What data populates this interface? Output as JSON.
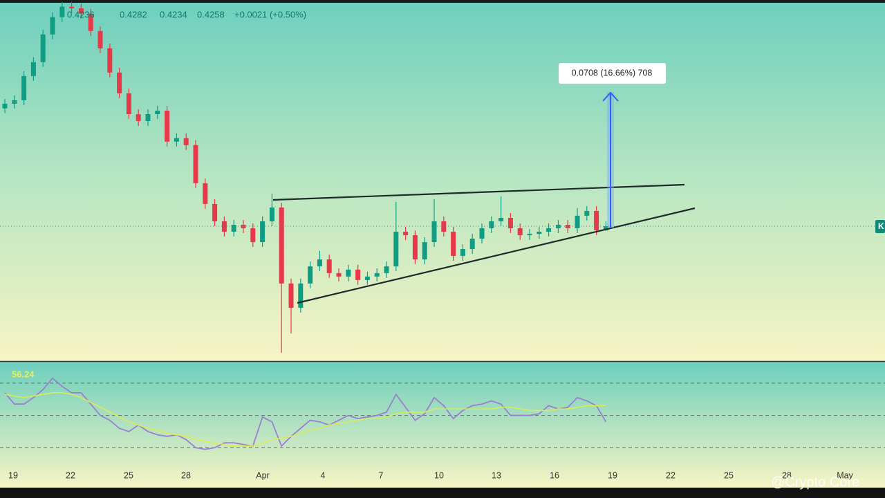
{
  "header": {
    "change": "+0.0021 (+0.50%)"
  },
  "watermark": "@Crypto Core",
  "price_badge": "K",
  "chart_data": [
    {
      "type": "candlestick",
      "up_color": "#0f9d84",
      "down_color": "#e8394a",
      "ylim": [
        0.3557,
        0.5433
      ],
      "measure_label": "0.0708 (16.66%) 708",
      "x_axis_labels": [
        "19",
        "22",
        "25",
        "28",
        "Apr",
        "4",
        "7",
        "10",
        "13",
        "16",
        "19",
        "22",
        "25",
        "28",
        "May"
      ],
      "open": [
        0.487,
        0.4894,
        0.4912,
        0.5038,
        0.511,
        0.5254,
        0.5344,
        0.5398,
        0.539,
        0.5362,
        0.5272,
        0.5182,
        0.5056,
        0.4948,
        0.484,
        0.4804,
        0.484,
        0.4858,
        0.4697,
        0.4715,
        0.4679,
        0.4481,
        0.4373,
        0.4283,
        0.4229,
        0.4265,
        0.4247,
        0.4175,
        0.4283,
        0.4355,
        0.396,
        0.3834,
        0.396,
        0.4049,
        0.4085,
        0.4014,
        0.3996,
        0.4032,
        0.3978,
        0.3996,
        0.4014,
        0.4049,
        0.4229,
        0.4211,
        0.4085,
        0.4175,
        0.4283,
        0.4229,
        0.4103,
        0.4139,
        0.4193,
        0.4247,
        0.4283,
        0.4301,
        0.4247,
        0.4211,
        0.4218,
        0.4229,
        0.4247,
        0.4265,
        0.4247,
        0.4312,
        0.4337,
        0.4236
      ],
      "high": [
        0.4919,
        0.4937,
        0.5063,
        0.5135,
        0.5279,
        0.5369,
        0.5423,
        0.5423,
        0.5415,
        0.5387,
        0.5297,
        0.5207,
        0.5081,
        0.4973,
        0.4865,
        0.4865,
        0.4883,
        0.4883,
        0.474,
        0.474,
        0.4704,
        0.4506,
        0.4398,
        0.4308,
        0.429,
        0.429,
        0.4272,
        0.4308,
        0.4427,
        0.438,
        0.3985,
        0.3985,
        0.4074,
        0.413,
        0.411,
        0.4039,
        0.4057,
        0.4057,
        0.4021,
        0.4039,
        0.4074,
        0.4384,
        0.4254,
        0.4236,
        0.42,
        0.4398,
        0.4308,
        0.4254,
        0.4164,
        0.4218,
        0.4272,
        0.4308,
        0.4413,
        0.4326,
        0.4272,
        0.4243,
        0.4254,
        0.4272,
        0.429,
        0.429,
        0.4352,
        0.4362,
        0.4362,
        0.4282
      ],
      "low": [
        0.4845,
        0.4869,
        0.4887,
        0.5013,
        0.5085,
        0.5229,
        0.5319,
        0.5365,
        0.5337,
        0.5247,
        0.5157,
        0.5031,
        0.4923,
        0.4815,
        0.4779,
        0.4779,
        0.4815,
        0.4672,
        0.4672,
        0.4654,
        0.4456,
        0.4348,
        0.4258,
        0.4204,
        0.4204,
        0.4222,
        0.415,
        0.415,
        0.4258,
        0.36,
        0.37,
        0.3809,
        0.3935,
        0.4024,
        0.3989,
        0.3971,
        0.3971,
        0.3953,
        0.3953,
        0.3971,
        0.3989,
        0.4024,
        0.4186,
        0.406,
        0.406,
        0.415,
        0.4204,
        0.4078,
        0.4078,
        0.4114,
        0.4168,
        0.4222,
        0.4258,
        0.4222,
        0.4186,
        0.4186,
        0.4193,
        0.4204,
        0.4222,
        0.4222,
        0.4222,
        0.4287,
        0.4212,
        0.4234
      ],
      "close": [
        0.4894,
        0.4912,
        0.5038,
        0.511,
        0.5254,
        0.5344,
        0.5398,
        0.539,
        0.5362,
        0.5272,
        0.5182,
        0.5056,
        0.4948,
        0.484,
        0.4804,
        0.484,
        0.4858,
        0.4697,
        0.4715,
        0.4679,
        0.4481,
        0.4373,
        0.4283,
        0.4229,
        0.4265,
        0.4247,
        0.4175,
        0.4283,
        0.4355,
        0.396,
        0.3834,
        0.396,
        0.4049,
        0.4085,
        0.4014,
        0.3996,
        0.4032,
        0.3978,
        0.3996,
        0.4014,
        0.4049,
        0.4229,
        0.4211,
        0.4085,
        0.4175,
        0.4283,
        0.4229,
        0.4103,
        0.4139,
        0.4193,
        0.4247,
        0.4283,
        0.4301,
        0.4247,
        0.4211,
        0.4218,
        0.4229,
        0.4247,
        0.4265,
        0.4247,
        0.4312,
        0.4337,
        0.4237,
        0.4258
      ]
    },
    {
      "type": "line",
      "ylim": [
        5.3,
        83.2
      ],
      "bands": [
        70,
        50,
        30
      ],
      "series": [
        {
          "color": "#9a7fd1",
          "values": [
            64,
            57,
            57,
            61,
            66,
            73,
            68,
            64,
            64,
            57,
            50,
            47,
            42,
            40,
            44,
            40,
            38,
            37,
            38,
            35,
            30,
            29,
            30,
            33,
            33,
            32,
            31,
            49,
            46,
            31,
            37,
            42,
            47,
            46,
            44,
            47,
            50,
            48,
            49,
            50,
            52,
            63,
            55,
            47,
            51,
            61,
            56,
            48,
            53,
            56,
            57,
            59,
            57,
            50,
            50,
            50,
            51,
            56,
            54,
            55,
            61,
            59,
            56,
            46
          ]
        },
        {
          "color": "#d9ec55",
          "values": [
            63,
            62,
            61,
            62,
            63,
            64,
            64,
            63,
            61,
            58,
            55,
            52,
            49,
            46,
            44,
            42,
            41,
            39,
            38,
            37,
            35,
            34,
            33,
            32,
            31,
            31,
            31,
            33,
            35,
            36,
            37,
            39,
            41,
            42,
            44,
            45,
            46,
            47,
            48,
            48,
            49,
            51,
            52,
            52,
            52,
            54,
            54,
            54,
            54,
            54,
            54,
            54,
            55,
            55,
            54,
            53,
            53,
            53,
            54,
            54,
            55,
            56,
            56,
            56.24
          ]
        }
      ]
    }
  ]
}
